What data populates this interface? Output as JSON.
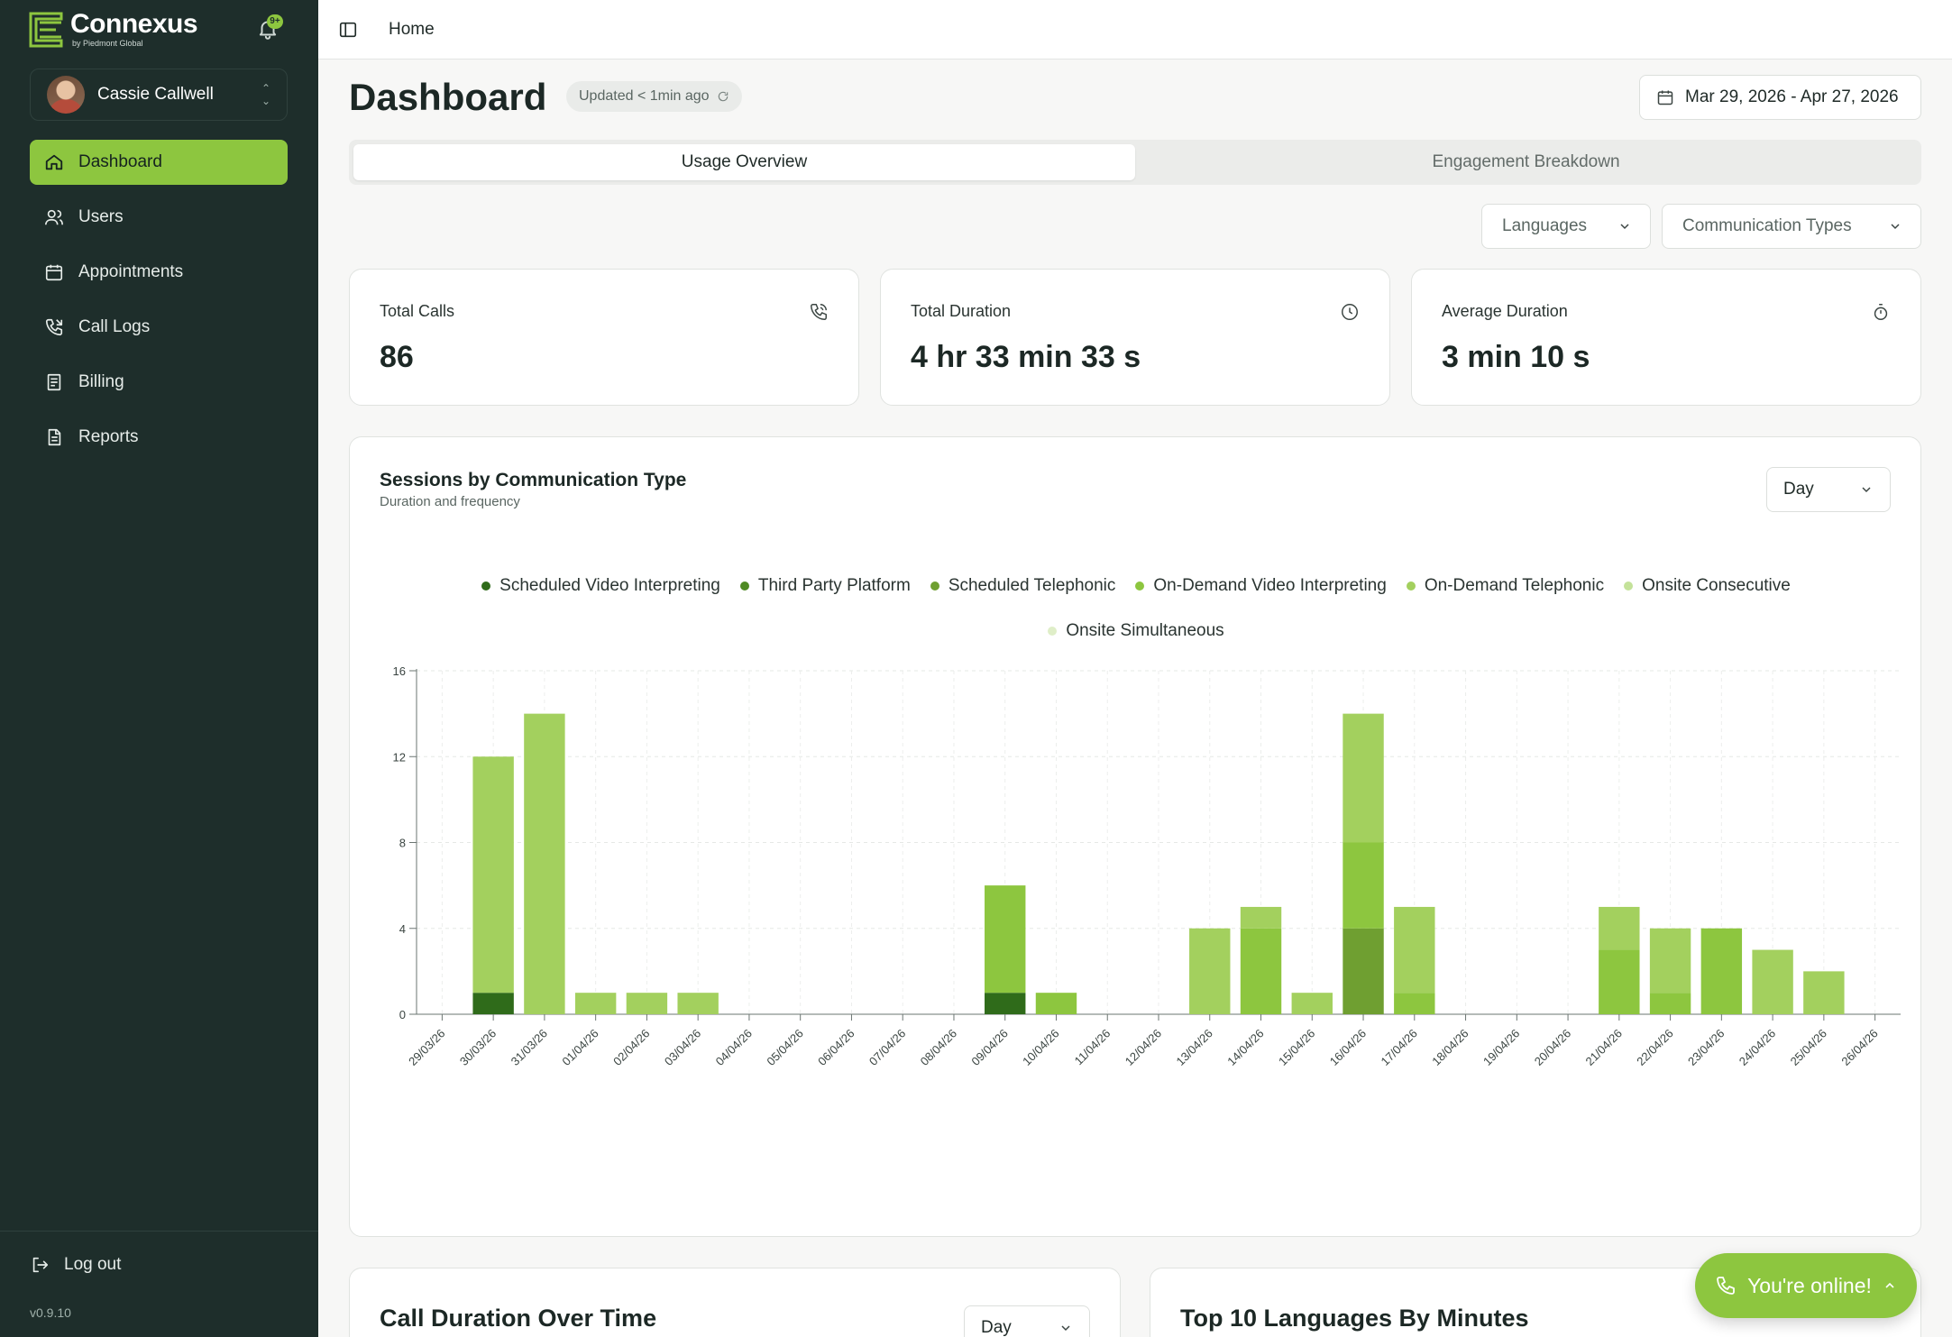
{
  "app": {
    "brand": "Connexus",
    "brand_sub": "by Piedmont Global",
    "notification_badge": "9+",
    "version": "v0.9.10"
  },
  "user": {
    "name": "Cassie Callwell"
  },
  "nav": [
    {
      "label": "Dashboard",
      "icon": "home-icon",
      "active": true
    },
    {
      "label": "Users",
      "icon": "users-icon",
      "active": false
    },
    {
      "label": "Appointments",
      "icon": "calendar-icon",
      "active": false
    },
    {
      "label": "Call Logs",
      "icon": "phone-log-icon",
      "active": false
    },
    {
      "label": "Billing",
      "icon": "receipt-icon",
      "active": false
    },
    {
      "label": "Reports",
      "icon": "document-icon",
      "active": false
    }
  ],
  "logout_label": "Log out",
  "topbar": {
    "breadcrumb": "Home"
  },
  "page": {
    "title": "Dashboard",
    "updated": "Updated < 1min ago",
    "date_range": "Mar 29, 2026 - Apr 27, 2026"
  },
  "tabs": [
    {
      "label": "Usage Overview",
      "active": true
    },
    {
      "label": "Engagement Breakdown",
      "active": false
    }
  ],
  "filters": {
    "languages": "Languages",
    "communication_types": "Communication Types"
  },
  "stats": [
    {
      "label": "Total Calls",
      "value": "86",
      "icon": "phone-icon"
    },
    {
      "label": "Total Duration",
      "value": "4 hr 33 min 33 s",
      "icon": "clock-icon"
    },
    {
      "label": "Average Duration",
      "value": "3 min 10 s",
      "icon": "timer-icon"
    }
  ],
  "sessions_chart": {
    "title": "Sessions by Communication Type",
    "subtitle": "Duration and frequency",
    "granularity": "Day"
  },
  "chart_data": {
    "type": "bar",
    "stacked": true,
    "categories": [
      "29/03/26",
      "30/03/26",
      "31/03/26",
      "01/04/26",
      "02/04/26",
      "03/04/26",
      "04/04/26",
      "05/04/26",
      "06/04/26",
      "07/04/26",
      "08/04/26",
      "09/04/26",
      "10/04/26",
      "11/04/26",
      "12/04/26",
      "13/04/26",
      "14/04/26",
      "15/04/26",
      "16/04/26",
      "17/04/26",
      "18/04/26",
      "19/04/26",
      "20/04/26",
      "21/04/26",
      "22/04/26",
      "23/04/26",
      "24/04/26",
      "25/04/26",
      "26/04/26"
    ],
    "ylim": [
      0,
      16
    ],
    "yticks": [
      0,
      4,
      8,
      12,
      16
    ],
    "grid": true,
    "legend_position": "top-center",
    "series": [
      {
        "name": "Scheduled Video Interpreting",
        "color": "#2f6b1a",
        "values": [
          0,
          1,
          0,
          0,
          0,
          0,
          0,
          0,
          0,
          0,
          0,
          1,
          0,
          0,
          0,
          0,
          0,
          0,
          0,
          0,
          0,
          0,
          0,
          0,
          0,
          0,
          0,
          0,
          0
        ]
      },
      {
        "name": "Third Party Platform",
        "color": "#4f8a24",
        "values": [
          0,
          0,
          0,
          0,
          0,
          0,
          0,
          0,
          0,
          0,
          0,
          0,
          0,
          0,
          0,
          0,
          0,
          0,
          0,
          0,
          0,
          0,
          0,
          0,
          0,
          0,
          0,
          0,
          0
        ]
      },
      {
        "name": "Scheduled Telephonic",
        "color": "#6f9f31",
        "values": [
          0,
          0,
          0,
          0,
          0,
          0,
          0,
          0,
          0,
          0,
          0,
          0,
          0,
          0,
          0,
          0,
          0,
          0,
          4,
          0,
          0,
          0,
          0,
          0,
          0,
          0,
          0,
          0,
          0
        ]
      },
      {
        "name": "On-Demand Video Interpreting",
        "color": "#8dc63f",
        "values": [
          0,
          0,
          0,
          0,
          0,
          0,
          0,
          0,
          0,
          0,
          0,
          5,
          1,
          0,
          0,
          0,
          4,
          0,
          4,
          1,
          0,
          0,
          0,
          3,
          1,
          4,
          0,
          0,
          0
        ]
      },
      {
        "name": "On-Demand Telephonic",
        "color": "#a3d05e",
        "values": [
          0,
          11,
          14,
          1,
          1,
          1,
          0,
          0,
          0,
          0,
          0,
          0,
          0,
          0,
          0,
          4,
          1,
          1,
          6,
          4,
          0,
          0,
          0,
          2,
          3,
          0,
          3,
          2,
          0
        ]
      },
      {
        "name": "Onsite Consecutive",
        "color": "#c4e29a",
        "values": [
          0,
          0,
          0,
          0,
          0,
          0,
          0,
          0,
          0,
          0,
          0,
          0,
          0,
          0,
          0,
          0,
          0,
          0,
          0,
          0,
          0,
          0,
          0,
          0,
          0,
          0,
          0,
          0,
          0
        ]
      },
      {
        "name": "Onsite Simultaneous",
        "color": "#dfeec8",
        "values": [
          0,
          0,
          0,
          0,
          0,
          0,
          0,
          0,
          0,
          0,
          0,
          0,
          0,
          0,
          0,
          0,
          0,
          0,
          0,
          0,
          0,
          0,
          0,
          0,
          0,
          0,
          0,
          0,
          0
        ]
      }
    ]
  },
  "bottom_cards": {
    "call_duration_title": "Call Duration Over Time",
    "call_duration_granularity": "Day",
    "top_languages_title": "Top 10 Languages By Minutes"
  },
  "online_button": "You're online!"
}
